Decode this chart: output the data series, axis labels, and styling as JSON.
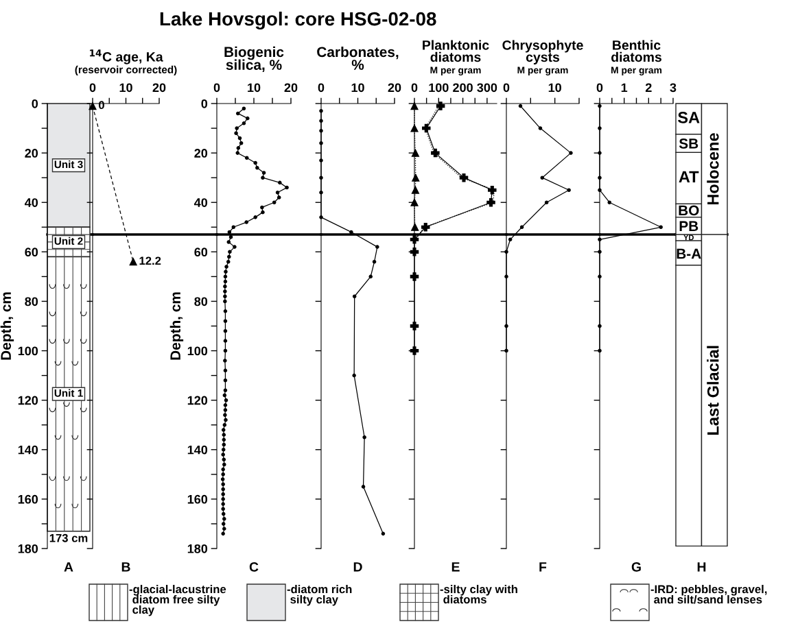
{
  "chart_data": [
    {
      "type": "bar",
      "stacked": true,
      "categories": [
        null
      ],
      "xlabel": "A",
      "ylabel": "Depth, cm",
      "ylim": [
        180,
        0
      ],
      "yticks": [
        0,
        {
          "value": 10,
          "label": null
        },
        20,
        {
          "value": 30,
          "label": null
        },
        40,
        {
          "value": 50,
          "label": null
        },
        60,
        {
          "value": 70,
          "label": null
        },
        80,
        {
          "value": 90,
          "label": null
        },
        100,
        {
          "value": 110,
          "label": null
        },
        120,
        {
          "value": 130,
          "label": null
        },
        140,
        {
          "value": 150,
          "label": null
        },
        160,
        {
          "value": 170,
          "label": null
        },
        180
      ],
      "annotations": [
        "Lake Hovsgol: core HSG-02-08",
        "Unit 3",
        "Unit 2",
        "Unit 1",
        {
          "text": "173 cm",
          "y": 173
        },
        "-IRD: pebbles, gravel,\n and silt/sand lenses"
      ],
      "series": [
        {
          "name": "-diatom rich\n silty clay",
          "color": "#e6e7e9",
          "values": [
            50
          ]
        },
        {
          "name": "-silty clay with\n diatoms",
          "color": "#ffffff",
          "values": [
            12
          ]
        },
        {
          "name": "-glacial-lacustrine\n diatom free silty\n clay",
          "color": "#ffffff",
          "values": [
            111
          ]
        }
      ],
      "legend": "bottom",
      "ref_lines": [
        {
          "axis": "y",
          "value": 53,
          "color": "#000000"
        }
      ]
    },
    {
      "type": "line",
      "orientation": "horizontal",
      "title": "$^{14}$C age, Ka",
      "subtitle": "(reservoir corrected)",
      "xlabel": "B",
      "xlim": [
        0,
        20
      ],
      "xticks": [
        0,
        {
          "value": 5,
          "label": null
        },
        10,
        {
          "value": 15,
          "label": null
        },
        20
      ],
      "ylim": [
        180,
        0
      ],
      "yticks": [
        0,
        {
          "value": 20,
          "label": null
        },
        {
          "value": 40,
          "label": null
        },
        {
          "value": 60,
          "label": null
        },
        {
          "value": 80,
          "label": null
        },
        {
          "value": 100,
          "label": null
        },
        {
          "value": 120,
          "label": null
        },
        {
          "value": 140,
          "label": null
        },
        {
          "value": 160,
          "label": null
        },
        {
          "value": 180,
          "label": null
        }
      ],
      "tick_labels": "x",
      "series": [
        {
          "color": "#000000",
          "x": [
            1,
            64
          ],
          "values": [
            0,
            12.2
          ],
          "value_labels": [
            "0",
            "12.2"
          ],
          "marker": "triangle",
          "line_style": "dashed"
        }
      ],
      "ref_lines": [
        {
          "axis": "y",
          "value": 53,
          "color": "#000000"
        }
      ]
    },
    {
      "type": "line",
      "orientation": "horizontal",
      "title": "Biogenic\nsilica, %",
      "xlabel": "C",
      "ylabel": "Depth, cm",
      "xlim": [
        0,
        20
      ],
      "xticks": [
        0,
        {
          "value": 5,
          "label": null
        },
        10,
        {
          "value": 15,
          "label": null
        },
        20
      ],
      "ylim": [
        180,
        0
      ],
      "yticks": [
        0,
        {
          "value": 10,
          "label": null
        },
        20,
        {
          "value": 30,
          "label": null
        },
        40,
        {
          "value": 50,
          "label": null
        },
        60,
        {
          "value": 70,
          "label": null
        },
        80,
        {
          "value": 90,
          "label": null
        },
        100,
        {
          "value": 110,
          "label": null
        },
        120,
        {
          "value": 130,
          "label": null
        },
        140,
        {
          "value": 150,
          "label": null
        },
        160,
        {
          "value": 170,
          "label": null
        },
        180
      ],
      "series": [
        {
          "color": "#000000",
          "marker": "circle",
          "line_style": "solid",
          "x": [
            2,
            4,
            6,
            8,
            10,
            12,
            14,
            16,
            18,
            20,
            22,
            24,
            26,
            28,
            30,
            32,
            34,
            36,
            38,
            40,
            42,
            44,
            46,
            48,
            50,
            52,
            54,
            56,
            58,
            60,
            62,
            64,
            66,
            68,
            70,
            72,
            74,
            76,
            78,
            80,
            84,
            88,
            92,
            96,
            100,
            104,
            108,
            112,
            116,
            118,
            120,
            122,
            124,
            126,
            128,
            130,
            132,
            134,
            136,
            138,
            140,
            142,
            144,
            146,
            148,
            150,
            152,
            154,
            156,
            158,
            160,
            162,
            164,
            166,
            168,
            170,
            172,
            174
          ],
          "values": [
            7.3,
            5.7,
            8.3,
            7.3,
            5.4,
            5.2,
            6.2,
            6.6,
            5.8,
            5.6,
            8.1,
            10.4,
            10.9,
            12.7,
            12.4,
            17.0,
            18.9,
            16.4,
            16.8,
            15.5,
            12.2,
            12.4,
            10.4,
            8.0,
            4.5,
            3.4,
            3.8,
            3.2,
            4.8,
            3.5,
            3.3,
            3.1,
            2.6,
            2.4,
            2.3,
            2.3,
            2.2,
            2.2,
            2.2,
            2.2,
            2.3,
            2.3,
            2.3,
            2.3,
            2.3,
            2.2,
            2.3,
            2.3,
            2.3,
            2.1,
            2.5,
            2.3,
            2.3,
            2.2,
            2.4,
            2.1,
            1.8,
            1.9,
            1.9,
            1.9,
            1.8,
            1.7,
            1.9,
            2.0,
            1.7,
            1.7,
            1.6,
            1.7,
            1.7,
            1.7,
            1.7,
            1.7,
            1.7,
            1.8,
            2.0,
            1.8,
            2.0,
            1.7
          ]
        }
      ],
      "ref_lines": [
        {
          "axis": "y",
          "value": 53,
          "color": "#000000"
        }
      ]
    },
    {
      "type": "line",
      "orientation": "horizontal",
      "title": "Carbonates,\n%",
      "xlabel": "D",
      "xlim": [
        0,
        20
      ],
      "xticks": [
        0,
        {
          "value": 5,
          "label": null
        },
        10,
        {
          "value": 15,
          "label": null
        },
        20
      ],
      "ylim": [
        180,
        0
      ],
      "yticks": [
        0,
        {
          "value": 20,
          "label": null
        },
        {
          "value": 40,
          "label": null
        },
        {
          "value": 60,
          "label": null
        },
        {
          "value": 80,
          "label": null
        },
        {
          "value": 100,
          "label": null
        },
        {
          "value": 120,
          "label": null
        },
        {
          "value": 140,
          "label": null
        },
        {
          "value": 160,
          "label": null
        },
        {
          "value": 180,
          "label": null
        }
      ],
      "tick_labels": "x",
      "series": [
        {
          "color": "#000000",
          "marker": "circle",
          "line_style": "solid",
          "x": [
            3,
            7,
            11,
            16,
            23,
            30,
            36,
            46,
            52,
            58,
            64,
            70,
            78,
            110,
            135,
            155,
            174
          ],
          "values": [
            0,
            0,
            0,
            0,
            0,
            0,
            0,
            0,
            8.2,
            15.3,
            14.5,
            13.5,
            9.1,
            9.0,
            11.8,
            11.5,
            16.9
          ]
        }
      ],
      "ref_lines": [
        {
          "axis": "y",
          "value": 53,
          "color": "#000000"
        }
      ]
    },
    {
      "type": "line",
      "orientation": "horizontal",
      "title": "Planktonic\ndiatoms",
      "subtitle": "M per gram",
      "xlabel": "E",
      "xlim": [
        0,
        340
      ],
      "xticks": [
        0,
        {
          "value": 50,
          "label": null
        },
        100,
        {
          "value": 150,
          "label": null
        },
        200,
        {
          "value": 250,
          "label": null
        },
        300
      ],
      "ylim": [
        180,
        0
      ],
      "yticks": [
        0,
        {
          "value": 20,
          "label": null
        },
        {
          "value": 40,
          "label": null
        },
        {
          "value": 60,
          "label": null
        },
        {
          "value": 80,
          "label": null
        },
        {
          "value": 100,
          "label": null
        },
        {
          "value": 120,
          "label": null
        },
        {
          "value": 140,
          "label": null
        },
        {
          "value": 160,
          "label": null
        },
        {
          "value": 180,
          "label": null
        }
      ],
      "tick_labels": "x",
      "series": [
        {
          "color": "#000000",
          "marker": "none",
          "line_style": "dotted",
          "x": [
            1,
            10,
            20,
            30,
            35,
            40,
            50,
            55
          ],
          "values": [
            100,
            45,
            80,
            195,
            330,
            325,
            40,
            5
          ]
        },
        {
          "color": "#000000",
          "marker": "cross",
          "line_style": "solid",
          "x": [
            1,
            10,
            20,
            30,
            35,
            40,
            50,
            55,
            60,
            70,
            90,
            100
          ],
          "values": [
            108,
            49,
            86,
            204,
            321,
            316,
            46,
            0,
            0,
            0,
            0,
            0
          ]
        },
        {
          "color": "#000000",
          "marker": "triangle",
          "line_style": "dotted",
          "x": [
            1,
            10,
            20,
            30,
            35,
            40,
            50
          ],
          "values": [
            0,
            0,
            4,
            5,
            4,
            0,
            2
          ]
        }
      ],
      "ref_lines": [
        {
          "axis": "y",
          "value": 53,
          "color": "#000000"
        }
      ]
    },
    {
      "type": "line",
      "orientation": "horizontal",
      "title": "Chrysophyte\ncysts",
      "subtitle": "M per gram",
      "xlabel": "F",
      "xlim": [
        0,
        15
      ],
      "xticks": [
        0,
        {
          "value": 5,
          "label": null
        },
        10,
        {
          "value": 15,
          "label": null
        }
      ],
      "ylim": [
        180,
        0
      ],
      "yticks": [
        0,
        {
          "value": 20,
          "label": null
        },
        {
          "value": 40,
          "label": null
        },
        {
          "value": 60,
          "label": null
        },
        {
          "value": 80,
          "label": null
        },
        {
          "value": 100,
          "label": null
        },
        {
          "value": 120,
          "label": null
        },
        {
          "value": 140,
          "label": null
        },
        {
          "value": 160,
          "label": null
        },
        {
          "value": 180,
          "label": null
        }
      ],
      "tick_labels": "x",
      "series": [
        {
          "color": "#000000",
          "marker": "circle",
          "line_style": "solid",
          "x": [
            1,
            10,
            20,
            30,
            35,
            40,
            50,
            55,
            60,
            70,
            90,
            100
          ],
          "values": [
            2.9,
            7.0,
            13.3,
            7.4,
            12.9,
            8.3,
            3.2,
            0.8,
            0,
            0,
            0,
            0
          ]
        }
      ],
      "ref_lines": [
        {
          "axis": "y",
          "value": 53,
          "color": "#000000"
        }
      ]
    },
    {
      "type": "line",
      "orientation": "horizontal",
      "title": "Benthic\ndiatoms",
      "subtitle": "M per gram",
      "xlabel": "G",
      "xlim": [
        0,
        3
      ],
      "xticks": [
        0,
        {
          "value": 0.5,
          "label": null
        },
        1,
        {
          "value": 1.5,
          "label": null
        },
        2,
        {
          "value": 2.5,
          "label": null
        },
        3
      ],
      "ylim": [
        180,
        0
      ],
      "yticks": [
        0,
        {
          "value": 20,
          "label": null
        },
        {
          "value": 40,
          "label": null
        },
        {
          "value": 60,
          "label": null
        },
        {
          "value": 80,
          "label": null
        },
        {
          "value": 100,
          "label": null
        },
        {
          "value": 120,
          "label": null
        },
        {
          "value": 140,
          "label": null
        },
        {
          "value": 160,
          "label": null
        },
        {
          "value": 180,
          "label": null
        }
      ],
      "tick_labels": "x",
      "series": [
        {
          "color": "#000000",
          "marker": "circle",
          "line_style": "solid",
          "x": [
            1,
            10,
            20,
            30,
            35,
            40,
            50,
            55,
            60,
            70,
            90,
            100
          ],
          "values": [
            0,
            0,
            0,
            0,
            0,
            0.4,
            2.5,
            0,
            0,
            0,
            0,
            0
          ]
        }
      ],
      "ref_lines": [
        {
          "axis": "y",
          "value": 53,
          "color": "#000000"
        }
      ]
    },
    {
      "type": "bar",
      "stacked": true,
      "categories": [
        null,
        null
      ],
      "xlabel": "H",
      "ylim": [
        180,
        0
      ],
      "tick_labels": false,
      "series": [
        {
          "name": "SA",
          "color": "#ffffff",
          "values": [
            12.4,
            null
          ]
        },
        {
          "name": "SB",
          "color": "#ffffff",
          "values": [
            7.4,
            null
          ]
        },
        {
          "name": "AT",
          "color": "#ffffff",
          "values": [
            20.8,
            null
          ]
        },
        {
          "name": "BO",
          "color": "#ffffff",
          "values": [
            5.4,
            null
          ]
        },
        {
          "name": "PB",
          "color": "#ffffff",
          "values": [
            7,
            null
          ]
        },
        {
          "name": "YD",
          "color": "#ffffff",
          "values": [
            2.5,
            null
          ]
        },
        {
          "name": "B-A",
          "color": "#ffffff",
          "values": [
            9.9,
            null
          ]
        },
        {
          "color": "#ffffff",
          "values": [
            113.6,
            null
          ]
        },
        {
          "name": "Holocene",
          "color": "#ffffff",
          "values": [
            null,
            53
          ]
        },
        {
          "name": "Last Glacial",
          "color": "#ffffff",
          "values": [
            null,
            126
          ]
        }
      ],
      "ref_lines": [
        {
          "axis": "y",
          "value": 53,
          "color": "#000000"
        }
      ]
    }
  ]
}
